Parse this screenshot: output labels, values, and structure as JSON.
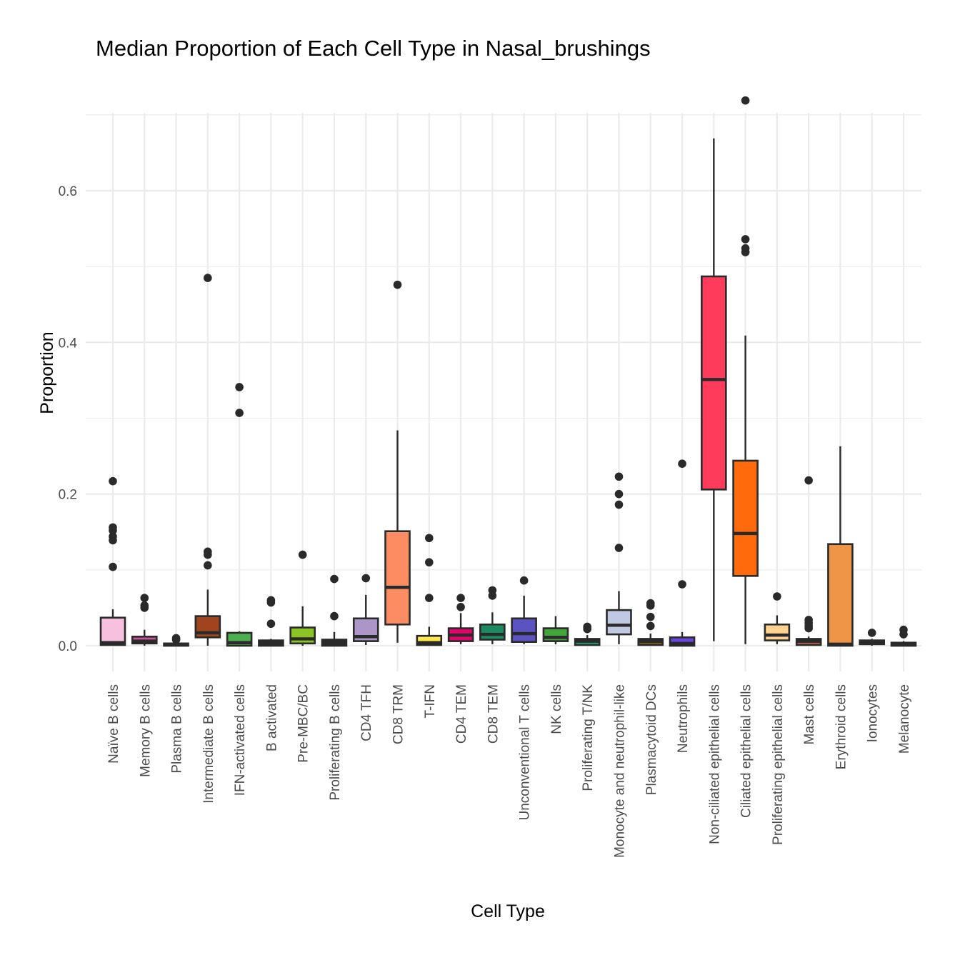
{
  "chart_data": {
    "type": "box",
    "title": "Median Proportion of Each Cell Type in Nasal_brushings",
    "xlabel": "Cell Type",
    "ylabel": "Proportion",
    "ylim": [
      -0.035,
      0.735
    ],
    "yticks": [
      0.0,
      0.2,
      0.4,
      0.6
    ],
    "ytick_labels": [
      "0.0",
      "0.2",
      "0.4",
      "0.6"
    ],
    "grid": true,
    "legend": "none",
    "categories": [
      "Naïve B cells",
      "Memory B cells",
      "Plasma B cells",
      "Intermediate B cells",
      "IFN-activated cells",
      "B activated",
      "Pre-MBC/BC",
      "Proliferating B cells",
      "CD4 TFH",
      "CD8 TRM",
      "T-IFN",
      "CD4 TEM",
      "CD8 TEM",
      "Unconventional T cells",
      "NK cells",
      "Proliferating T/NK",
      "Monocyte and neutrophil-like",
      "Plasmacytoid DCs",
      "Neutrophils",
      "Non-ciliated epithelial cells",
      "Ciliated epithelial cells",
      "Proliferating epithelial cells",
      "Mast cells",
      "Erythroid cells",
      "Ionocytes",
      "Melanocyte"
    ],
    "boxes": [
      {
        "name": "Naïve B cells",
        "color": "#F8C0DF",
        "lower_whisker": 0.0,
        "q1": 0.001,
        "median": 0.004,
        "q3": 0.037,
        "upper_whisker": 0.048,
        "outliers": [
          0.217,
          0.156,
          0.152,
          0.144,
          0.139,
          0.104
        ]
      },
      {
        "name": "Memory B cells",
        "color": "#C7559C",
        "lower_whisker": 0.0,
        "q1": 0.003,
        "median": 0.006,
        "q3": 0.012,
        "upper_whisker": 0.021,
        "outliers": [
          0.063,
          0.053,
          0.05
        ]
      },
      {
        "name": "Plasma B cells",
        "color": "#2A2A2A",
        "lower_whisker": 0.0,
        "q1": 0.0,
        "median": 0.001,
        "q3": 0.003,
        "upper_whisker": 0.005,
        "outliers": [
          0.01,
          0.008
        ]
      },
      {
        "name": "Intermediate B cells",
        "color": "#A0441E",
        "lower_whisker": 0.0,
        "q1": 0.011,
        "median": 0.017,
        "q3": 0.039,
        "upper_whisker": 0.074,
        "outliers": [
          0.485,
          0.124,
          0.12,
          0.106
        ]
      },
      {
        "name": "IFN-activated cells",
        "color": "#4CAF50",
        "lower_whisker": 0.0,
        "q1": 0.0,
        "median": 0.004,
        "q3": 0.017,
        "upper_whisker": 0.019,
        "outliers": [
          0.341,
          0.307
        ]
      },
      {
        "name": "B activated",
        "color": "#2A2A2A",
        "lower_whisker": 0.0,
        "q1": 0.0,
        "median": 0.004,
        "q3": 0.007,
        "upper_whisker": 0.009,
        "outliers": [
          0.06,
          0.057,
          0.029
        ]
      },
      {
        "name": "Pre-MBC/BC",
        "color": "#8CC424",
        "lower_whisker": 0.0,
        "q1": 0.003,
        "median": 0.009,
        "q3": 0.024,
        "upper_whisker": 0.052,
        "outliers": [
          0.12
        ]
      },
      {
        "name": "Proliferating B cells",
        "color": "#2A2A2A",
        "lower_whisker": 0.0,
        "q1": 0.0,
        "median": 0.003,
        "q3": 0.008,
        "upper_whisker": 0.018,
        "outliers": [
          0.088,
          0.039
        ]
      },
      {
        "name": "CD4 TFH",
        "color": "#AC96C8",
        "lower_whisker": 0.001,
        "q1": 0.006,
        "median": 0.012,
        "q3": 0.036,
        "upper_whisker": 0.067,
        "outliers": [
          0.089
        ]
      },
      {
        "name": "CD8 TRM",
        "color": "#FC8D62",
        "lower_whisker": 0.004,
        "q1": 0.028,
        "median": 0.077,
        "q3": 0.151,
        "upper_whisker": 0.284,
        "outliers": [
          0.476
        ]
      },
      {
        "name": "T-IFN",
        "color": "#FFE74C",
        "lower_whisker": 0.0,
        "q1": 0.001,
        "median": 0.004,
        "q3": 0.013,
        "upper_whisker": 0.025,
        "outliers": [
          0.142,
          0.11,
          0.063
        ]
      },
      {
        "name": "CD4 TEM",
        "color": "#E7006B",
        "lower_whisker": 0.002,
        "q1": 0.006,
        "median": 0.014,
        "q3": 0.023,
        "upper_whisker": 0.043,
        "outliers": [
          0.063,
          0.051
        ]
      },
      {
        "name": "CD8 TEM",
        "color": "#1B8C62",
        "lower_whisker": 0.002,
        "q1": 0.008,
        "median": 0.015,
        "q3": 0.028,
        "upper_whisker": 0.044,
        "outliers": [
          0.073,
          0.066
        ]
      },
      {
        "name": "Unconventional T cells",
        "color": "#5B53C2",
        "lower_whisker": 0.002,
        "q1": 0.005,
        "median": 0.016,
        "q3": 0.036,
        "upper_whisker": 0.066,
        "outliers": [
          0.086
        ]
      },
      {
        "name": "NK cells",
        "color": "#40A838",
        "lower_whisker": 0.002,
        "q1": 0.006,
        "median": 0.011,
        "q3": 0.023,
        "upper_whisker": 0.039,
        "outliers": []
      },
      {
        "name": "Proliferating T/NK",
        "color": "#2F9B74",
        "lower_whisker": 0.0,
        "q1": 0.001,
        "median": 0.006,
        "q3": 0.009,
        "upper_whisker": 0.014,
        "outliers": [
          0.025,
          0.022
        ]
      },
      {
        "name": "Monocyte and neutrophil-like",
        "color": "#C0C9E2",
        "lower_whisker": 0.002,
        "q1": 0.015,
        "median": 0.027,
        "q3": 0.047,
        "upper_whisker": 0.072,
        "outliers": [
          0.223,
          0.2,
          0.186,
          0.129
        ]
      },
      {
        "name": "Plasmacytoid DCs",
        "color": "#7A5C1E",
        "lower_whisker": 0.0,
        "q1": 0.001,
        "median": 0.006,
        "q3": 0.009,
        "upper_whisker": 0.016,
        "outliers": [
          0.056,
          0.053,
          0.038,
          0.026
        ]
      },
      {
        "name": "Neutrophils",
        "color": "#6A45E0",
        "lower_whisker": 0.0,
        "q1": 0.0,
        "median": 0.003,
        "q3": 0.011,
        "upper_whisker": 0.018,
        "outliers": [
          0.24,
          0.081
        ]
      },
      {
        "name": "Non-ciliated epithelial cells",
        "color": "#FF3B5C",
        "lower_whisker": 0.006,
        "q1": 0.206,
        "median": 0.351,
        "q3": 0.487,
        "upper_whisker": 0.669,
        "outliers": []
      },
      {
        "name": "Ciliated epithelial cells",
        "color": "#FF6A0D",
        "lower_whisker": 0.002,
        "q1": 0.092,
        "median": 0.148,
        "q3": 0.244,
        "upper_whisker": 0.409,
        "outliers": [
          0.719,
          0.536,
          0.524,
          0.519
        ]
      },
      {
        "name": "Proliferating epithelial cells",
        "color": "#FFD192",
        "lower_whisker": 0.002,
        "q1": 0.007,
        "median": 0.014,
        "q3": 0.028,
        "upper_whisker": 0.04,
        "outliers": [
          0.065
        ]
      },
      {
        "name": "Mast cells",
        "color": "#B85D55",
        "lower_whisker": 0.0,
        "q1": 0.001,
        "median": 0.006,
        "q3": 0.009,
        "upper_whisker": 0.012,
        "outliers": [
          0.218,
          0.034,
          0.03,
          0.026,
          0.023
        ]
      },
      {
        "name": "Erythroid cells",
        "color": "#EE9548",
        "lower_whisker": 0.0,
        "q1": 0.0,
        "median": 0.002,
        "q3": 0.134,
        "upper_whisker": 0.263,
        "outliers": []
      },
      {
        "name": "Ionocytes",
        "color": "#2A2A2A",
        "lower_whisker": 0.0,
        "q1": 0.002,
        "median": 0.005,
        "q3": 0.007,
        "upper_whisker": 0.009,
        "outliers": [
          0.017
        ]
      },
      {
        "name": "Melanocyte",
        "color": "#2A2A2A",
        "lower_whisker": 0.0,
        "q1": 0.0,
        "median": 0.001,
        "q3": 0.004,
        "upper_whisker": 0.006,
        "outliers": [
          0.021,
          0.015
        ]
      }
    ]
  }
}
